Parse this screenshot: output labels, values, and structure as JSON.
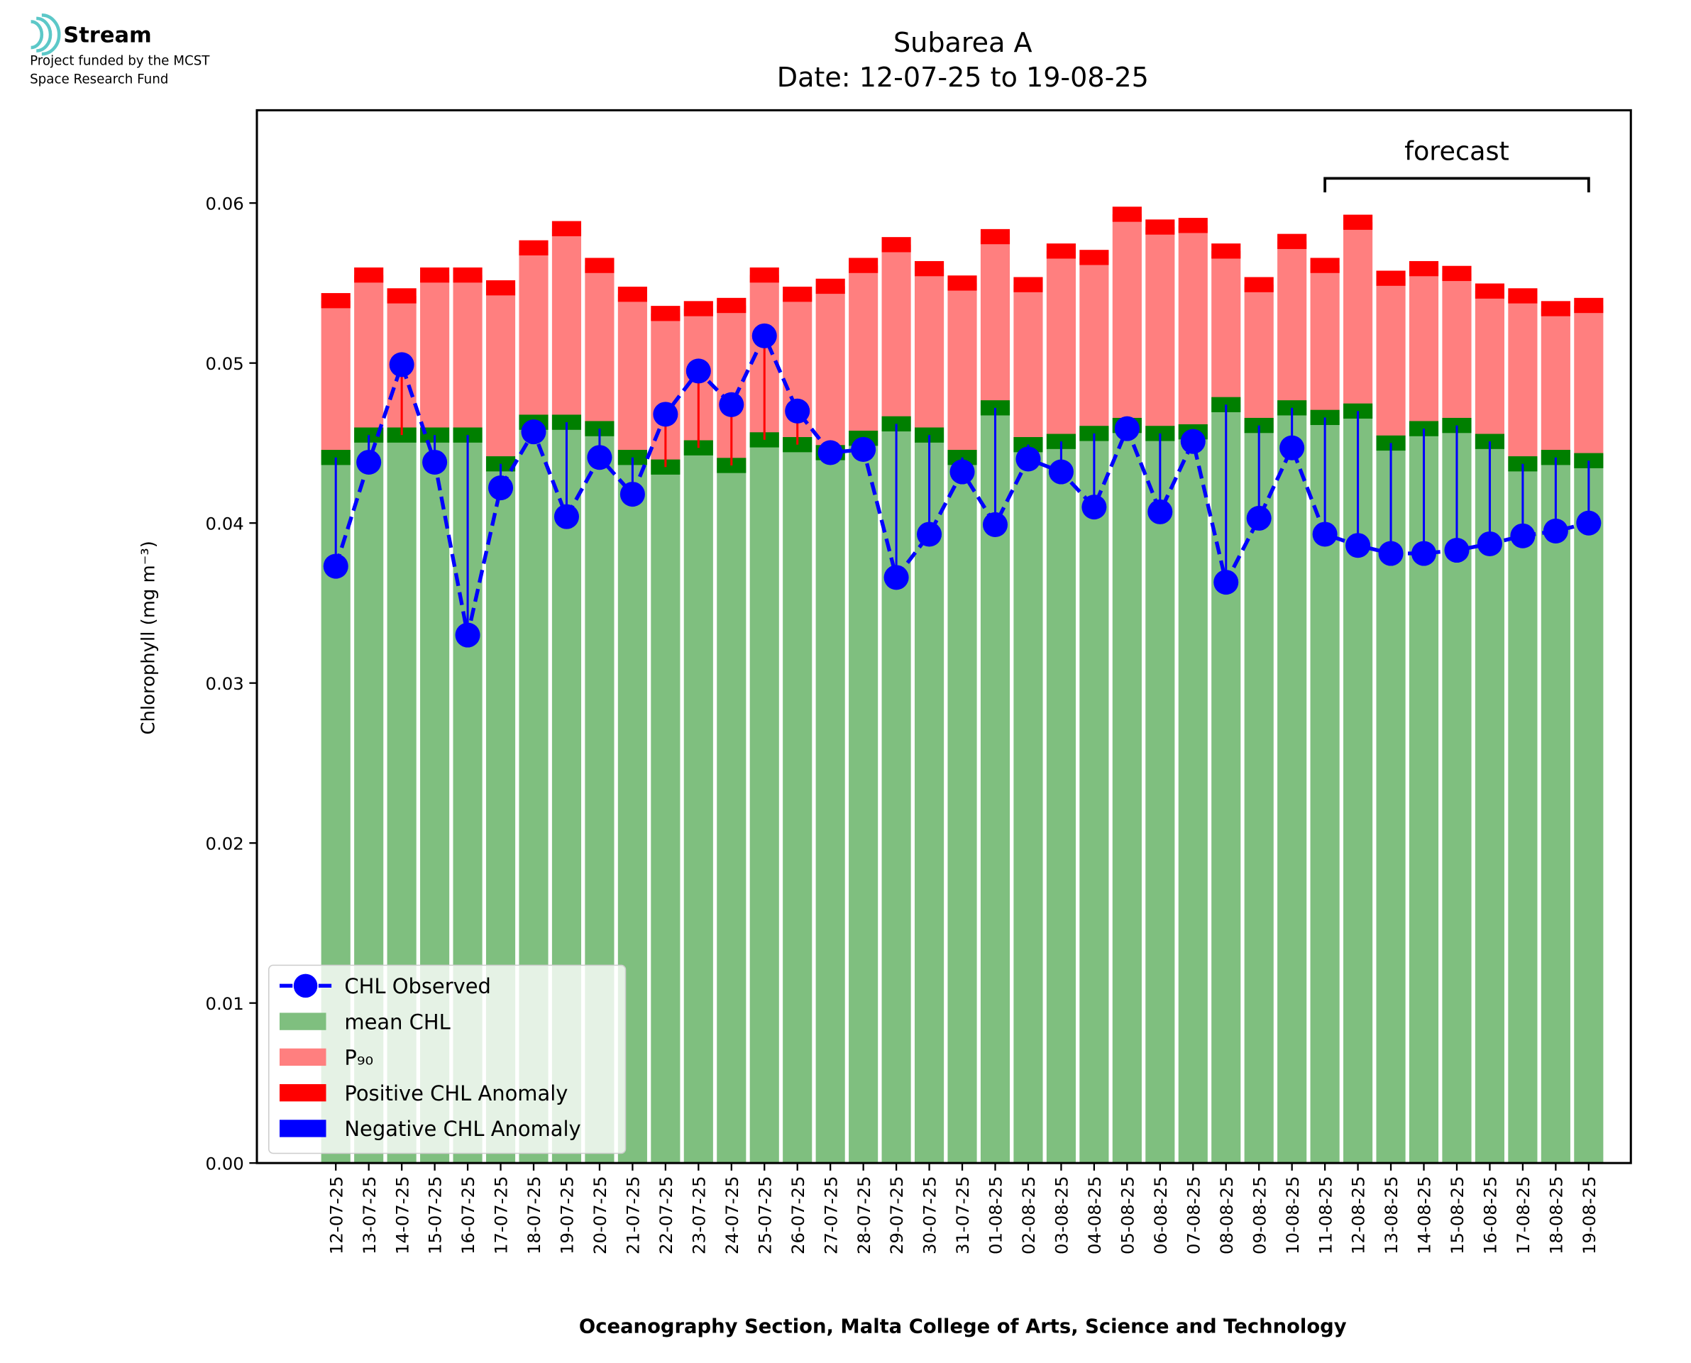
{
  "logo": {
    "name": "Stream",
    "lines": [
      "Project funded by the MCST",
      "Space Research Fund"
    ]
  },
  "chart_data": {
    "type": "bar",
    "title": [
      "Subarea A",
      "Date: 12-07-25 to 19-08-25"
    ],
    "xlabel": "Oceanography Section, Malta College of Arts, Science and Technology",
    "ylabel": "Chlorophyll (mg m⁻³)",
    "categories": [
      "12-07-25",
      "13-07-25",
      "14-07-25",
      "15-07-25",
      "16-07-25",
      "17-07-25",
      "18-07-25",
      "19-07-25",
      "20-07-25",
      "21-07-25",
      "22-07-25",
      "23-07-25",
      "24-07-25",
      "25-07-25",
      "26-07-25",
      "27-07-25",
      "28-07-25",
      "29-07-25",
      "30-07-25",
      "31-07-25",
      "01-08-25",
      "02-08-25",
      "03-08-25",
      "04-08-25",
      "05-08-25",
      "06-08-25",
      "07-08-25",
      "08-08-25",
      "09-08-25",
      "10-08-25",
      "11-08-25",
      "12-08-25",
      "13-08-25",
      "14-08-25",
      "15-08-25",
      "16-08-25",
      "17-08-25",
      "18-08-25",
      "19-08-25"
    ],
    "series": [
      {
        "name": "CHL Observed",
        "color": "#0000ff",
        "values": [
          0.0373,
          0.0438,
          0.0499,
          0.0438,
          0.033,
          0.0422,
          0.0457,
          0.0404,
          0.0441,
          0.0418,
          0.0468,
          0.0495,
          0.0474,
          0.0517,
          0.047,
          0.0444,
          0.0446,
          0.0366,
          0.0393,
          0.0432,
          0.0399,
          0.044,
          0.0432,
          0.041,
          0.0459,
          0.0407,
          0.0451,
          0.0363,
          0.0403,
          0.0447,
          0.0393,
          0.0386,
          0.0381,
          0.0381,
          0.0383,
          0.0387,
          0.0392,
          0.0395,
          0.04
        ]
      },
      {
        "name": "mean CHL",
        "color": "#7fbf7f",
        "values": [
          0.0441,
          0.0455,
          0.0455,
          0.0455,
          0.0455,
          0.0437,
          0.0463,
          0.0463,
          0.0459,
          0.0441,
          0.0435,
          0.0447,
          0.0436,
          0.0452,
          0.0449,
          0.0444,
          0.0453,
          0.0462,
          0.0455,
          0.0441,
          0.0472,
          0.0449,
          0.0451,
          0.0456,
          0.0461,
          0.0456,
          0.0457,
          0.0474,
          0.0461,
          0.0472,
          0.0466,
          0.047,
          0.045,
          0.0459,
          0.0461,
          0.0451,
          0.0437,
          0.0441,
          0.0439
        ]
      },
      {
        "name": "P₉₀",
        "color": "#ff7f7f",
        "values": [
          0.0539,
          0.0555,
          0.0542,
          0.0555,
          0.0555,
          0.0547,
          0.0572,
          0.0584,
          0.0561,
          0.0543,
          0.0531,
          0.0534,
          0.0536,
          0.0555,
          0.0543,
          0.0548,
          0.0561,
          0.0574,
          0.0559,
          0.055,
          0.0579,
          0.0549,
          0.057,
          0.0566,
          0.0593,
          0.0585,
          0.0586,
          0.057,
          0.0549,
          0.0576,
          0.0561,
          0.0588,
          0.0553,
          0.0559,
          0.0556,
          0.0545,
          0.0542,
          0.0534,
          0.0536
        ]
      }
    ],
    "anomalies": [
      {
        "name": "Positive CHL Anomaly",
        "color": "#ff0000"
      },
      {
        "name": "Negative CHL Anomaly",
        "color": "#0000ff"
      }
    ],
    "ylim": [
      0,
      0.0658
    ],
    "yticks": [
      {
        "value": 0,
        "label": "0.00"
      },
      0.01,
      0.02,
      0.03,
      0.04,
      0.05,
      0.06
    ],
    "annotation": {
      "text": "forecast",
      "from": "11-08-25",
      "to": "19-08-25"
    },
    "legend": "lower left"
  }
}
